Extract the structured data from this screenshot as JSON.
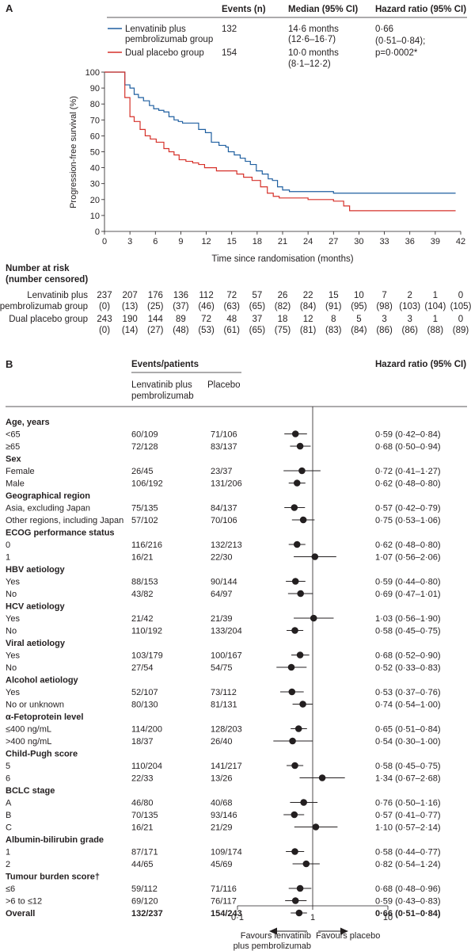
{
  "panelA": {
    "label": "A",
    "header": {
      "events": "Events (n)",
      "median": "Median (95% CI)",
      "hr": "Hazard ratio (95% CI)"
    },
    "legend": [
      {
        "name_lines": [
          "Lenvatinib plus",
          "pembrolizumab group"
        ],
        "events": "132",
        "median_lines": [
          "14·6 months",
          "(12·6–16·7)"
        ],
        "color": "#1f5fa0"
      },
      {
        "name_lines": [
          "Dual placebo group"
        ],
        "events": "154",
        "median_lines": [
          "10·0 months",
          "(8·1–12·2)"
        ],
        "color": "#d6312a"
      }
    ],
    "hr_lines": [
      "0·66",
      "(0·51–0·84);",
      "p=0·0002*"
    ],
    "risk_title": [
      "Number at risk",
      "(number censored)"
    ],
    "risk_rows": [
      {
        "label": "Lenvatinib plus",
        "values": [
          "237",
          "207",
          "176",
          "136",
          "112",
          "72",
          "57",
          "26",
          "22",
          "15",
          "10",
          "7",
          "2",
          "1",
          "0"
        ]
      },
      {
        "label": "pembrolizumab group",
        "values": [
          "(0)",
          "(13)",
          "(25)",
          "(37)",
          "(46)",
          "(63)",
          "(65)",
          "(82)",
          "(84)",
          "(91)",
          "(95)",
          "(98)",
          "(103)",
          "(104)",
          "(105)"
        ]
      },
      {
        "label": "Dual placebo group",
        "values": [
          "243",
          "190",
          "144",
          "89",
          "72",
          "48",
          "37",
          "18",
          "12",
          "8",
          "5",
          "3",
          "3",
          "1",
          "0"
        ]
      },
      {
        "label": "",
        "values": [
          "(0)",
          "(14)",
          "(27)",
          "(48)",
          "(53)",
          "(61)",
          "(65)",
          "(75)",
          "(81)",
          "(83)",
          "(84)",
          "(86)",
          "(86)",
          "(88)",
          "(89)"
        ]
      }
    ]
  },
  "panelB": {
    "label": "B",
    "header": {
      "events_patients": "Events/patients",
      "col1_lines": [
        "Lenvatinib plus",
        "pembrolizumab"
      ],
      "col2": "Placebo",
      "hr": "Hazard ratio (95% CI)"
    },
    "axis_ticks": [
      "0·1",
      "1",
      "10"
    ],
    "favours_left": [
      "Favours lenvatinib",
      "plus pembrolizumab"
    ],
    "favours_right": "Favours placebo"
  },
  "chart_data": [
    {
      "type": "line",
      "xlabel": "Time since randomisation (months)",
      "ylabel": "Progression-free survival (%)",
      "xlim": [
        0,
        42
      ],
      "ylim": [
        0,
        100
      ],
      "xticks": [
        0,
        3,
        6,
        9,
        12,
        15,
        18,
        21,
        24,
        27,
        30,
        33,
        36,
        39,
        42
      ],
      "yticks": [
        0,
        10,
        20,
        30,
        40,
        50,
        60,
        70,
        80,
        90,
        100
      ],
      "series": [
        {
          "name": "Lenvatinib plus pembrolizumab group",
          "color": "#1f5fa0",
          "x": [
            0,
            1.9,
            2.4,
            3.0,
            3.5,
            4.0,
            4.6,
            5.3,
            5.8,
            6.4,
            7.0,
            7.6,
            8.2,
            8.7,
            9.2,
            10.0,
            11.1,
            11.9,
            12.6,
            13.5,
            14.3,
            14.6,
            15.3,
            16.0,
            16.6,
            17.2,
            17.9,
            18.6,
            19.3,
            19.8,
            20.4,
            21.0,
            21.8,
            24.0,
            27.0,
            30.0,
            33.0,
            36.0,
            41.4
          ],
          "y": [
            100,
            100,
            92,
            90,
            86,
            84,
            82,
            79,
            77,
            76,
            75,
            72,
            70,
            69,
            68,
            68,
            64,
            62,
            56,
            54,
            53,
            50,
            48,
            46,
            44,
            42,
            38,
            36,
            33,
            32,
            28,
            26,
            25,
            25,
            24,
            24,
            24,
            24,
            24
          ]
        },
        {
          "name": "Dual placebo group",
          "color": "#d6312a",
          "x": [
            0,
            1.9,
            2.4,
            3.0,
            3.5,
            4.2,
            4.8,
            5.4,
            6.1,
            7.0,
            7.6,
            8.2,
            8.8,
            9.6,
            10.4,
            11.1,
            11.8,
            13.2,
            14.6,
            15.6,
            16.4,
            17.4,
            18.4,
            19.2,
            19.9,
            20.6,
            21.2,
            24.0,
            27.0,
            28.2,
            28.9,
            30.0,
            33.0,
            36.0,
            41.4
          ],
          "y": [
            100,
            100,
            84,
            72,
            69,
            64,
            60,
            58,
            56,
            52,
            50,
            48,
            45,
            44,
            43,
            42,
            40,
            38,
            38,
            36,
            34,
            32,
            28,
            24,
            22,
            21,
            21,
            20,
            19,
            16,
            13,
            13,
            13,
            13,
            13
          ]
        }
      ]
    },
    {
      "type": "scatter",
      "xlabel": "",
      "xscale": "log",
      "xlim": [
        0.1,
        10
      ],
      "reference_line": 1,
      "rows": [
        {
          "label": "Age, years",
          "heading": true
        },
        {
          "label": "<65",
          "lp": "60/109",
          "pl": "71/106",
          "hr": 0.59,
          "lo": 0.42,
          "hi": 0.84,
          "text": "0·59 (0·42–0·84)"
        },
        {
          "label": "≥65",
          "lp": "72/128",
          "pl": "83/137",
          "hr": 0.68,
          "lo": 0.5,
          "hi": 0.94,
          "text": "0·68 (0·50–0·94)"
        },
        {
          "label": "Sex",
          "heading": true
        },
        {
          "label": "Female",
          "lp": "26/45",
          "pl": "23/37",
          "hr": 0.72,
          "lo": 0.41,
          "hi": 1.27,
          "text": "0·72 (0·41–1·27)"
        },
        {
          "label": "Male",
          "lp": "106/192",
          "pl": "131/206",
          "hr": 0.62,
          "lo": 0.48,
          "hi": 0.8,
          "text": "0·62 (0·48–0·80)"
        },
        {
          "label": "Geographical region",
          "heading": true
        },
        {
          "label": "Asia, excluding Japan",
          "lp": "75/135",
          "pl": "84/137",
          "hr": 0.57,
          "lo": 0.42,
          "hi": 0.79,
          "text": "0·57 (0·42–0·79)"
        },
        {
          "label": "Other regions, including Japan",
          "lp": "57/102",
          "pl": "70/106",
          "hr": 0.75,
          "lo": 0.53,
          "hi": 1.06,
          "text": "0·75 (0·53–1·06)"
        },
        {
          "label": "ECOG performance status",
          "heading": true
        },
        {
          "label": "0",
          "lp": "116/216",
          "pl": "132/213",
          "hr": 0.62,
          "lo": 0.48,
          "hi": 0.8,
          "text": "0·62 (0·48–0·80)"
        },
        {
          "label": "1",
          "lp": "16/21",
          "pl": "22/30",
          "hr": 1.07,
          "lo": 0.56,
          "hi": 2.06,
          "text": "1·07 (0·56–2·06)"
        },
        {
          "label": "HBV aetiology",
          "heading": true
        },
        {
          "label": "Yes",
          "lp": "88/153",
          "pl": "90/144",
          "hr": 0.59,
          "lo": 0.44,
          "hi": 0.8,
          "text": "0·59 (0·44–0·80)"
        },
        {
          "label": "No",
          "lp": "43/82",
          "pl": "64/97",
          "hr": 0.69,
          "lo": 0.47,
          "hi": 1.01,
          "text": "0·69 (0·47–1·01)"
        },
        {
          "label": "HCV aetiology",
          "heading": true
        },
        {
          "label": "Yes",
          "lp": "21/42",
          "pl": "21/39",
          "hr": 1.03,
          "lo": 0.56,
          "hi": 1.9,
          "text": "1·03 (0·56–1·90)"
        },
        {
          "label": "No",
          "lp": "110/192",
          "pl": "133/204",
          "hr": 0.58,
          "lo": 0.45,
          "hi": 0.75,
          "text": "0·58 (0·45–0·75)"
        },
        {
          "label": "Viral aetiology",
          "heading": true
        },
        {
          "label": "Yes",
          "lp": "103/179",
          "pl": "100/167",
          "hr": 0.68,
          "lo": 0.52,
          "hi": 0.9,
          "text": "0·68 (0·52–0·90)"
        },
        {
          "label": "No",
          "lp": "27/54",
          "pl": "54/75",
          "hr": 0.52,
          "lo": 0.33,
          "hi": 0.83,
          "text": "0·52 (0·33–0·83)"
        },
        {
          "label": "Alcohol aetiology",
          "heading": true
        },
        {
          "label": "Yes",
          "lp": "52/107",
          "pl": "73/112",
          "hr": 0.53,
          "lo": 0.37,
          "hi": 0.76,
          "text": "0·53 (0·37–0·76)"
        },
        {
          "label": "No or unknown",
          "lp": "80/130",
          "pl": "81/131",
          "hr": 0.74,
          "lo": 0.54,
          "hi": 1.0,
          "text": "0·74 (0·54–1·00)"
        },
        {
          "label": "α-Fetoprotein level",
          "heading": true
        },
        {
          "label": "≤400 ng/mL",
          "lp": "114/200",
          "pl": "128/203",
          "hr": 0.65,
          "lo": 0.51,
          "hi": 0.84,
          "text": "0·65 (0·51–0·84)"
        },
        {
          "label": ">400 ng/mL",
          "lp": "18/37",
          "pl": "26/40",
          "hr": 0.54,
          "lo": 0.3,
          "hi": 1.0,
          "text": "0·54 (0·30–1·00)"
        },
        {
          "label": "Child-Pugh score",
          "heading": true
        },
        {
          "label": "5",
          "lp": "110/204",
          "pl": "141/217",
          "hr": 0.58,
          "lo": 0.45,
          "hi": 0.75,
          "text": "0·58 (0·45–0·75)"
        },
        {
          "label": "6",
          "lp": "22/33",
          "pl": "13/26",
          "hr": 1.34,
          "lo": 0.67,
          "hi": 2.68,
          "text": "1·34 (0·67–2·68)"
        },
        {
          "label": "BCLC stage",
          "heading": true
        },
        {
          "label": "A",
          "lp": "46/80",
          "pl": "40/68",
          "hr": 0.76,
          "lo": 0.5,
          "hi": 1.16,
          "text": "0·76 (0·50–1·16)"
        },
        {
          "label": "B",
          "lp": "70/135",
          "pl": "93/146",
          "hr": 0.57,
          "lo": 0.41,
          "hi": 0.77,
          "text": "0·57 (0·41–0·77)"
        },
        {
          "label": "C",
          "lp": "16/21",
          "pl": "21/29",
          "hr": 1.1,
          "lo": 0.57,
          "hi": 2.14,
          "text": "1·10 (0·57–2·14)"
        },
        {
          "label": "Albumin-bilirubin grade",
          "heading": true
        },
        {
          "label": "1",
          "lp": "87/171",
          "pl": "109/174",
          "hr": 0.58,
          "lo": 0.44,
          "hi": 0.77,
          "text": "0·58 (0·44–0·77)"
        },
        {
          "label": "2",
          "lp": "44/65",
          "pl": "45/69",
          "hr": 0.82,
          "lo": 0.54,
          "hi": 1.24,
          "text": "0·82 (0·54–1·24)"
        },
        {
          "label": "Tumour burden score†",
          "heading": true
        },
        {
          "label": "≤6",
          "lp": "59/112",
          "pl": "71/116",
          "hr": 0.68,
          "lo": 0.48,
          "hi": 0.96,
          "text": "0·68 (0·48–0·96)"
        },
        {
          "label": ">6 to ≤12",
          "lp": "69/120",
          "pl": "76/117",
          "hr": 0.59,
          "lo": 0.43,
          "hi": 0.83,
          "text": "0·59 (0·43–0·83)"
        },
        {
          "label": "Overall",
          "lp": "132/237",
          "pl": "154/243",
          "hr": 0.66,
          "lo": 0.51,
          "hi": 0.84,
          "text": "0·66 (0·51–0·84)",
          "bold": true
        }
      ]
    }
  ]
}
